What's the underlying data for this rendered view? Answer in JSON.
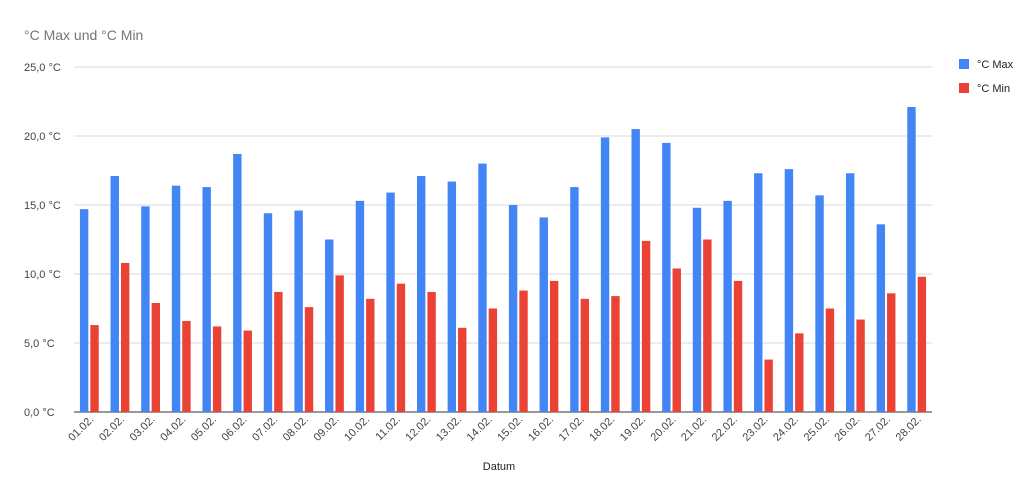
{
  "chart_data": {
    "type": "bar",
    "title": "°C Max und °C Min",
    "xlabel": "Datum",
    "ylabel": "",
    "ylim": [
      0,
      25
    ],
    "yticks": [
      0,
      5,
      10,
      15,
      20,
      25
    ],
    "ytick_labels": [
      "0,0 °C",
      "5,0 °C",
      "10,0 °C",
      "15,0 °C",
      "20,0 °C",
      "25,0 °C"
    ],
    "grid": true,
    "legend_position": "right",
    "categories": [
      "01.02.",
      "02.02.",
      "03.02.",
      "04.02.",
      "05.02.",
      "06.02.",
      "07.02.",
      "08.02.",
      "09.02.",
      "10.02.",
      "11.02.",
      "12.02.",
      "13.02.",
      "14.02.",
      "15.02.",
      "16.02.",
      "17.02.",
      "18.02.",
      "19.02.",
      "20.02.",
      "21.02.",
      "22.02.",
      "23.02.",
      "24.02.",
      "25.02.",
      "26.02.",
      "27.02.",
      "28.02."
    ],
    "series": [
      {
        "name": "°C Max",
        "color": "#4285f4",
        "values": [
          14.7,
          17.1,
          14.9,
          16.4,
          16.3,
          18.7,
          14.4,
          14.6,
          12.5,
          15.3,
          15.9,
          17.1,
          16.7,
          18.0,
          15.0,
          14.1,
          16.3,
          19.9,
          20.5,
          19.5,
          14.8,
          15.3,
          17.3,
          17.6,
          15.7,
          17.3,
          13.6,
          22.1
        ]
      },
      {
        "name": "°C Min",
        "color": "#ea4335",
        "values": [
          6.3,
          10.8,
          7.9,
          6.6,
          6.2,
          5.9,
          8.7,
          7.6,
          9.9,
          8.2,
          9.3,
          8.7,
          6.1,
          7.5,
          8.8,
          9.5,
          8.2,
          8.4,
          12.4,
          10.4,
          12.5,
          9.5,
          3.8,
          5.7,
          7.5,
          6.7,
          8.6,
          9.8
        ]
      }
    ]
  }
}
